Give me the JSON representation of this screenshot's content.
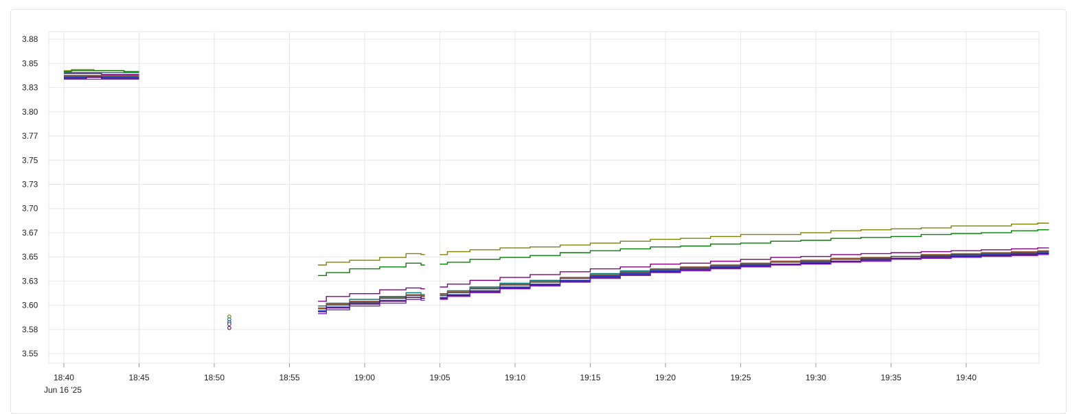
{
  "chart_data": {
    "type": "line",
    "title": "",
    "xlabel": "",
    "ylabel": "",
    "date_label": "Jun 16 '25",
    "x_ticks": [
      "18:40",
      "18:45",
      "18:50",
      "18:55",
      "19:00",
      "19:05",
      "19:10",
      "19:15",
      "19:20",
      "19:25",
      "19:30",
      "19:35",
      "19:40"
    ],
    "y_ticks": [
      "3.55",
      "3.58",
      "3.60",
      "3.63",
      "3.65",
      "3.67",
      "3.70",
      "3.73",
      "3.75",
      "3.77",
      "3.80",
      "3.83",
      "3.85",
      "3.88"
    ],
    "ylim": [
      3.54,
      3.888
    ],
    "xlim_minutes": [
      "18:39",
      "19:44.5"
    ],
    "grid": true,
    "legend": "none",
    "series": [
      {
        "color": "#808000",
        "points": [
          [
            0,
            3.847
          ],
          [
            1,
            3.848
          ],
          [
            3,
            3.847
          ],
          [
            5,
            3.846
          ],
          [
            16.9,
            3.643
          ],
          [
            18,
            3.646
          ],
          [
            20,
            3.648
          ],
          [
            22,
            3.651
          ],
          [
            23.5,
            3.655
          ],
          [
            24,
            3.654
          ],
          [
            24.5,
            null
          ],
          [
            25,
            3.654
          ],
          [
            26,
            3.657
          ],
          [
            28,
            3.659
          ],
          [
            30,
            3.661
          ],
          [
            32,
            3.662
          ],
          [
            34,
            3.664
          ],
          [
            36,
            3.666
          ],
          [
            38,
            3.668
          ],
          [
            40,
            3.67
          ],
          [
            42,
            3.671
          ],
          [
            44,
            3.673
          ],
          [
            46,
            3.675
          ],
          [
            48,
            3.675
          ],
          [
            50,
            3.677
          ],
          [
            52,
            3.679
          ],
          [
            54,
            3.68
          ],
          [
            56,
            3.681
          ],
          [
            58,
            3.682
          ],
          [
            60,
            3.684
          ],
          [
            62,
            3.684
          ],
          [
            64,
            3.686
          ],
          [
            65.5,
            3.687
          ]
        ]
      },
      {
        "color": "#008000",
        "points": [
          [
            0,
            3.846
          ],
          [
            1,
            3.847
          ],
          [
            3,
            3.847
          ],
          [
            5,
            3.846
          ],
          [
            16.9,
            3.632
          ],
          [
            18,
            3.635
          ],
          [
            20,
            3.639
          ],
          [
            22,
            3.641
          ],
          [
            23.5,
            3.645
          ],
          [
            24,
            3.643
          ],
          [
            24.5,
            null
          ],
          [
            25,
            3.644
          ],
          [
            26,
            3.646
          ],
          [
            28,
            3.649
          ],
          [
            30,
            3.651
          ],
          [
            32,
            3.653
          ],
          [
            34,
            3.656
          ],
          [
            36,
            3.658
          ],
          [
            38,
            3.66
          ],
          [
            40,
            3.662
          ],
          [
            42,
            3.663
          ],
          [
            44,
            3.665
          ],
          [
            46,
            3.666
          ],
          [
            48,
            3.668
          ],
          [
            50,
            3.669
          ],
          [
            52,
            3.671
          ],
          [
            54,
            3.672
          ],
          [
            56,
            3.673
          ],
          [
            58,
            3.675
          ],
          [
            60,
            3.676
          ],
          [
            62,
            3.677
          ],
          [
            64,
            3.679
          ],
          [
            65.5,
            3.68
          ]
        ]
      },
      {
        "color": "#800080",
        "points": [
          [
            0,
            3.844
          ],
          [
            1,
            3.844
          ],
          [
            2,
            3.844
          ],
          [
            3,
            3.843
          ],
          [
            4,
            3.843
          ],
          [
            5,
            3.843
          ],
          [
            16.9,
            3.605
          ],
          [
            18,
            3.61
          ],
          [
            20,
            3.613
          ],
          [
            22,
            3.617
          ],
          [
            23.5,
            3.619
          ],
          [
            24,
            3.618
          ],
          [
            24.5,
            null
          ],
          [
            25,
            3.62
          ],
          [
            26,
            3.623
          ],
          [
            28,
            3.627
          ],
          [
            30,
            3.63
          ],
          [
            32,
            3.633
          ],
          [
            34,
            3.636
          ],
          [
            36,
            3.639
          ],
          [
            38,
            3.641
          ],
          [
            40,
            3.644
          ],
          [
            42,
            3.645
          ],
          [
            44,
            3.647
          ],
          [
            46,
            3.649
          ],
          [
            48,
            3.651
          ],
          [
            50,
            3.652
          ],
          [
            52,
            3.654
          ],
          [
            54,
            3.655
          ],
          [
            56,
            3.656
          ],
          [
            58,
            3.657
          ],
          [
            60,
            3.658
          ],
          [
            62,
            3.659
          ],
          [
            64,
            3.66
          ],
          [
            65.5,
            3.661
          ]
        ]
      },
      {
        "color": "#008080",
        "points": [
          [
            0,
            3.845
          ],
          [
            1,
            3.845
          ],
          [
            3,
            3.845
          ],
          [
            5,
            3.845
          ],
          [
            16.9,
            3.6
          ],
          [
            18,
            3.603
          ],
          [
            20,
            3.607
          ],
          [
            22,
            3.61
          ],
          [
            23.5,
            3.614
          ],
          [
            24,
            3.612
          ],
          [
            24.5,
            null
          ],
          [
            25,
            3.613
          ],
          [
            26,
            3.616
          ],
          [
            28,
            3.62
          ],
          [
            30,
            3.624
          ],
          [
            32,
            3.627
          ],
          [
            34,
            3.63
          ],
          [
            36,
            3.634
          ],
          [
            38,
            3.637
          ],
          [
            40,
            3.639
          ],
          [
            42,
            3.641
          ],
          [
            44,
            3.643
          ],
          [
            46,
            3.645
          ],
          [
            48,
            3.647
          ],
          [
            50,
            3.648
          ],
          [
            52,
            3.65
          ],
          [
            54,
            3.651
          ],
          [
            56,
            3.652
          ],
          [
            58,
            3.653
          ],
          [
            60,
            3.654
          ],
          [
            62,
            3.655
          ],
          [
            64,
            3.656
          ],
          [
            65.5,
            3.657
          ]
        ]
      },
      {
        "color": "#a0522d",
        "points": [
          [
            0,
            3.842
          ],
          [
            1,
            3.842
          ],
          [
            3,
            3.842
          ],
          [
            5,
            3.842
          ],
          [
            16.9,
            3.598
          ],
          [
            18,
            3.602
          ],
          [
            20,
            3.605
          ],
          [
            22,
            3.609
          ],
          [
            23.5,
            3.612
          ],
          [
            24,
            3.611
          ],
          [
            24.5,
            null
          ],
          [
            25,
            3.612
          ],
          [
            26,
            3.615
          ],
          [
            28,
            3.619
          ],
          [
            30,
            3.623
          ],
          [
            32,
            3.626
          ],
          [
            34,
            3.63
          ],
          [
            36,
            3.633
          ],
          [
            38,
            3.636
          ],
          [
            40,
            3.639
          ],
          [
            42,
            3.641
          ],
          [
            44,
            3.643
          ],
          [
            46,
            3.645
          ],
          [
            48,
            3.647
          ],
          [
            50,
            3.648
          ],
          [
            52,
            3.65
          ],
          [
            54,
            3.651
          ],
          [
            56,
            3.652
          ],
          [
            58,
            3.654
          ],
          [
            60,
            3.655
          ],
          [
            62,
            3.656
          ],
          [
            64,
            3.657
          ],
          [
            65.5,
            3.658
          ]
        ]
      },
      {
        "color": "#4d4d4d",
        "points": [
          [
            0,
            3.841
          ],
          [
            1,
            3.841
          ],
          [
            3,
            3.841
          ],
          [
            5,
            3.841
          ],
          [
            16.9,
            3.597
          ],
          [
            18,
            3.601
          ],
          [
            20,
            3.604
          ],
          [
            22,
            3.608
          ],
          [
            23.5,
            3.611
          ],
          [
            24,
            3.61
          ],
          [
            24.5,
            null
          ],
          [
            25,
            3.611
          ],
          [
            26,
            3.614
          ],
          [
            28,
            3.618
          ],
          [
            30,
            3.622
          ],
          [
            32,
            3.625
          ],
          [
            34,
            3.629
          ],
          [
            36,
            3.632
          ],
          [
            38,
            3.635
          ],
          [
            40,
            3.638
          ],
          [
            42,
            3.64
          ],
          [
            44,
            3.642
          ],
          [
            46,
            3.644
          ],
          [
            48,
            3.646
          ],
          [
            50,
            3.647
          ],
          [
            52,
            3.649
          ],
          [
            54,
            3.65
          ],
          [
            56,
            3.652
          ],
          [
            58,
            3.653
          ],
          [
            60,
            3.654
          ],
          [
            62,
            3.655
          ],
          [
            64,
            3.656
          ],
          [
            65.5,
            3.657
          ]
        ]
      },
      {
        "color": "#1f3fbf",
        "points": [
          [
            0,
            3.84
          ],
          [
            1,
            3.84
          ],
          [
            3,
            3.84
          ],
          [
            5,
            3.84
          ],
          [
            16.9,
            3.595
          ],
          [
            18,
            3.599
          ],
          [
            20,
            3.603
          ],
          [
            22,
            3.606
          ],
          [
            23.5,
            3.609
          ],
          [
            24,
            3.608
          ],
          [
            24.5,
            null
          ],
          [
            25,
            3.609
          ],
          [
            26,
            3.612
          ],
          [
            28,
            3.616
          ],
          [
            30,
            3.62
          ],
          [
            32,
            3.623
          ],
          [
            34,
            3.627
          ],
          [
            36,
            3.631
          ],
          [
            38,
            3.634
          ],
          [
            40,
            3.637
          ],
          [
            42,
            3.639
          ],
          [
            44,
            3.641
          ],
          [
            46,
            3.643
          ],
          [
            48,
            3.644
          ],
          [
            50,
            3.646
          ],
          [
            52,
            3.647
          ],
          [
            54,
            3.649
          ],
          [
            56,
            3.65
          ],
          [
            58,
            3.652
          ],
          [
            60,
            3.653
          ],
          [
            62,
            3.654
          ],
          [
            64,
            3.655
          ],
          [
            65.5,
            3.656
          ]
        ]
      },
      {
        "color": "#4b0060",
        "points": [
          [
            0,
            3.839
          ],
          [
            1,
            3.839
          ],
          [
            2,
            3.84
          ],
          [
            3,
            3.839
          ],
          [
            4,
            3.839
          ],
          [
            5,
            3.839
          ],
          [
            16.9,
            3.594
          ],
          [
            18,
            3.598
          ],
          [
            20,
            3.602
          ],
          [
            22,
            3.605
          ],
          [
            23.5,
            3.609
          ],
          [
            24,
            3.608
          ],
          [
            24.5,
            null
          ],
          [
            25,
            3.608
          ],
          [
            26,
            3.611
          ],
          [
            28,
            3.615
          ],
          [
            30,
            3.619
          ],
          [
            32,
            3.622
          ],
          [
            34,
            3.626
          ],
          [
            36,
            3.63
          ],
          [
            38,
            3.633
          ],
          [
            40,
            3.636
          ],
          [
            42,
            3.638
          ],
          [
            44,
            3.64
          ],
          [
            46,
            3.642
          ],
          [
            48,
            3.644
          ],
          [
            50,
            3.645
          ],
          [
            52,
            3.647
          ],
          [
            54,
            3.648
          ],
          [
            56,
            3.65
          ],
          [
            58,
            3.651
          ],
          [
            60,
            3.652
          ],
          [
            62,
            3.653
          ],
          [
            64,
            3.654
          ],
          [
            65.5,
            3.655
          ]
        ]
      },
      {
        "color": "#7a1fd1",
        "points": [
          [
            0,
            3.838
          ],
          [
            1,
            3.838
          ],
          [
            3,
            3.838
          ],
          [
            5,
            3.838
          ],
          [
            16.9,
            3.592
          ],
          [
            18,
            3.596
          ],
          [
            20,
            3.6
          ],
          [
            22,
            3.603
          ],
          [
            23.5,
            3.607
          ],
          [
            24,
            3.606
          ],
          [
            24.5,
            null
          ],
          [
            25,
            3.607
          ],
          [
            26,
            3.61
          ],
          [
            28,
            3.614
          ],
          [
            30,
            3.618
          ],
          [
            32,
            3.621
          ],
          [
            34,
            3.625
          ],
          [
            36,
            3.629
          ],
          [
            38,
            3.632
          ],
          [
            40,
            3.635
          ],
          [
            42,
            3.637
          ],
          [
            44,
            3.639
          ],
          [
            46,
            3.641
          ],
          [
            48,
            3.643
          ],
          [
            50,
            3.644
          ],
          [
            52,
            3.646
          ],
          [
            54,
            3.647
          ],
          [
            56,
            3.649
          ],
          [
            58,
            3.65
          ],
          [
            60,
            3.651
          ],
          [
            62,
            3.652
          ],
          [
            64,
            3.653
          ],
          [
            65.5,
            3.654
          ]
        ]
      }
    ],
    "isolated_points": [
      {
        "x": 11,
        "y": 3.589,
        "color": "#808000"
      },
      {
        "x": 11,
        "y": 3.586,
        "color": "#008080"
      },
      {
        "x": 11,
        "y": 3.583,
        "color": "#1f3fbf"
      },
      {
        "x": 11,
        "y": 3.581,
        "color": "#4d4d4d"
      },
      {
        "x": 11,
        "y": 3.577,
        "color": "#800080"
      }
    ]
  }
}
